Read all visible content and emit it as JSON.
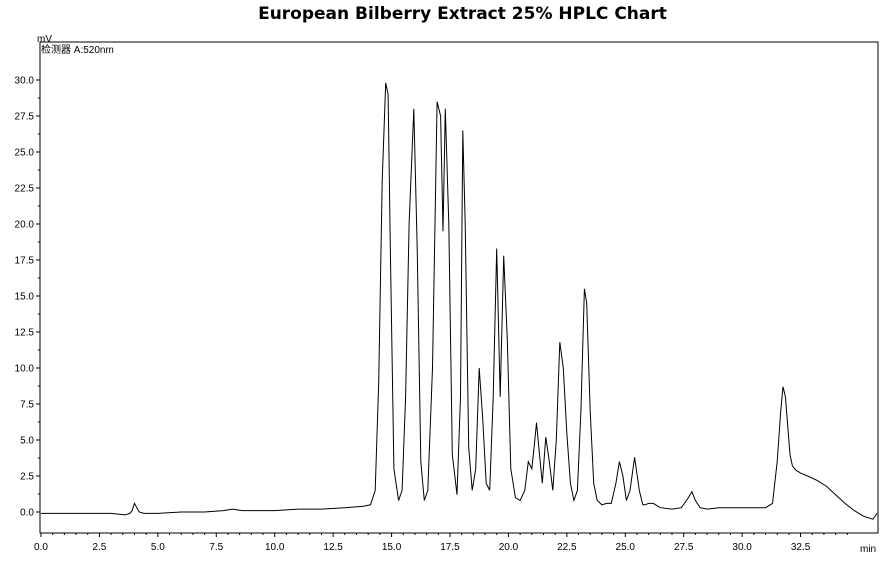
{
  "chart_data": {
    "type": "line",
    "title": "European Bilberry Extract 25% HPLC Chart",
    "ylabel": "mV",
    "xlabel": "min",
    "detector_label": "检测器 A:520nm",
    "xlim": [
      0,
      36
    ],
    "ylim": [
      -1.5,
      32.5
    ],
    "x_ticks": [
      0.0,
      2.5,
      5.0,
      7.5,
      10.0,
      12.5,
      15.0,
      17.5,
      20.0,
      22.5,
      25.0,
      27.5,
      30.0,
      32.5
    ],
    "x_tick_labels": [
      "0.0",
      "2.5",
      "5.0",
      "7.5",
      "10.0",
      "12.5",
      "15.0",
      "17.5",
      "20.0",
      "22.5",
      "25.0",
      "27.5",
      "30.0",
      "32.5"
    ],
    "y_ticks": [
      0.0,
      2.5,
      5.0,
      7.5,
      10.0,
      12.5,
      15.0,
      17.5,
      20.0,
      22.5,
      25.0,
      27.5,
      30.0
    ],
    "y_tick_labels": [
      "0.0",
      "2.5",
      "5.0",
      "7.5",
      "10.0",
      "12.5",
      "15.0",
      "17.5",
      "20.0",
      "22.5",
      "25.0",
      "27.5",
      "30.0"
    ],
    "series": [
      {
        "color": "#000000",
        "x": [
          0,
          1,
          2,
          3,
          3.6,
          3.8,
          3.9,
          4.0,
          4.1,
          4.2,
          4.4,
          5,
          6,
          7,
          7.8,
          8.2,
          8.6,
          9,
          10,
          11,
          12,
          13,
          13.8,
          14.1,
          14.3,
          14.45,
          14.6,
          14.75,
          14.85,
          14.95,
          15.1,
          15.3,
          15.45,
          15.6,
          15.75,
          15.95,
          16.1,
          16.25,
          16.4,
          16.55,
          16.75,
          16.95,
          17.1,
          17.2,
          17.3,
          17.45,
          17.6,
          17.8,
          17.95,
          18.05,
          18.15,
          18.3,
          18.45,
          18.6,
          18.75,
          18.9,
          19.05,
          19.2,
          19.35,
          19.5,
          19.65,
          19.8,
          19.95,
          20.1,
          20.3,
          20.5,
          20.7,
          20.85,
          21.0,
          21.1,
          21.2,
          21.3,
          21.45,
          21.6,
          21.75,
          21.9,
          22.05,
          22.2,
          22.35,
          22.5,
          22.65,
          22.8,
          22.95,
          23.1,
          23.25,
          23.35,
          23.5,
          23.65,
          23.8,
          24.0,
          24.2,
          24.4,
          24.6,
          24.75,
          24.9,
          25.05,
          25.2,
          25.4,
          25.6,
          25.75,
          25.85,
          26.0,
          26.2,
          26.5,
          27.0,
          27.4,
          27.7,
          27.85,
          28.0,
          28.2,
          28.5,
          29,
          29.5,
          30,
          30.5,
          31.0,
          31.3,
          31.5,
          31.65,
          31.75,
          31.85,
          31.95,
          32.05,
          32.15,
          32.3,
          32.5,
          32.8,
          33.2,
          33.6,
          34.0,
          34.4,
          34.8,
          35.2,
          35.6,
          36.0
        ],
        "y": [
          -0.1,
          -0.1,
          -0.1,
          -0.1,
          -0.2,
          -0.1,
          0.1,
          0.6,
          0.3,
          0.0,
          -0.1,
          -0.1,
          0.0,
          0.0,
          0.1,
          0.2,
          0.1,
          0.1,
          0.1,
          0.2,
          0.2,
          0.3,
          0.4,
          0.5,
          1.5,
          9.0,
          23.0,
          29.8,
          29.0,
          18.0,
          3.0,
          0.8,
          1.5,
          8.0,
          20.0,
          28.0,
          18.0,
          3.5,
          0.8,
          1.5,
          10.0,
          28.5,
          27.5,
          19.5,
          28.0,
          20.0,
          4.0,
          1.2,
          8.0,
          26.5,
          20.0,
          4.5,
          1.5,
          3.0,
          10.0,
          6.5,
          2.0,
          1.5,
          8.0,
          18.3,
          8.0,
          17.8,
          12.0,
          3.0,
          1.0,
          0.8,
          1.5,
          3.5,
          3.0,
          4.5,
          6.2,
          4.5,
          2.0,
          5.2,
          3.5,
          1.5,
          5.0,
          11.8,
          10.0,
          5.5,
          2.0,
          0.8,
          1.5,
          7.0,
          15.5,
          14.5,
          7.0,
          2.0,
          0.8,
          0.5,
          0.6,
          0.6,
          2.0,
          3.5,
          2.5,
          0.8,
          1.5,
          3.8,
          1.5,
          0.5,
          0.5,
          0.6,
          0.6,
          0.3,
          0.2,
          0.3,
          1.0,
          1.4,
          0.8,
          0.3,
          0.2,
          0.3,
          0.3,
          0.3,
          0.3,
          0.3,
          0.6,
          3.5,
          7.0,
          8.7,
          8.0,
          6.0,
          4.0,
          3.2,
          2.9,
          2.7,
          2.5,
          2.2,
          1.8,
          1.2,
          0.6,
          0.1,
          -0.3,
          -0.5,
          -0.1
        ]
      }
    ],
    "grid": false,
    "legend": "none"
  }
}
